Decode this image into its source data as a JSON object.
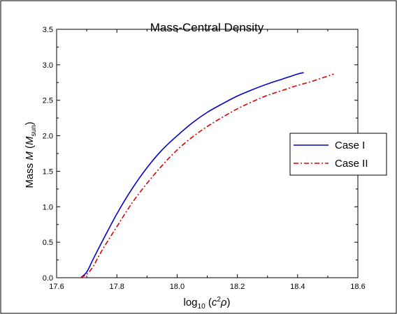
{
  "chart_data": {
    "type": "line",
    "title": "Mass-Central Density",
    "xlabel": {
      "prefix": "log",
      "sub": "10",
      "paren_open": " (",
      "c": "c",
      "sup": "2",
      "rho": "ρ",
      "paren_close": ")"
    },
    "ylabel": {
      "prefix": "Mass ",
      "M": "M",
      "open": " (",
      "M2": "M",
      "sub": "sun",
      "close": ")"
    },
    "xlim": [
      17.6,
      18.6
    ],
    "ylim": [
      0.0,
      3.5
    ],
    "x_ticks": [
      "17.6",
      "17.8",
      "18.0",
      "18.2",
      "18.4",
      "18.6"
    ],
    "y_ticks": [
      "0.0",
      "0.5",
      "1.0",
      "1.5",
      "2.0",
      "2.5",
      "3.0",
      "3.5"
    ],
    "grid": false,
    "legend_position": "right",
    "series": [
      {
        "name": "Case I",
        "color": "#0000cc",
        "style": "solid",
        "x": [
          17.68,
          17.7,
          17.72,
          17.75,
          17.8,
          17.85,
          17.9,
          17.95,
          18.0,
          18.05,
          18.1,
          18.15,
          18.2,
          18.25,
          18.3,
          18.35,
          18.4,
          18.42
        ],
        "y": [
          0.0,
          0.08,
          0.25,
          0.5,
          0.9,
          1.25,
          1.55,
          1.8,
          2.0,
          2.18,
          2.33,
          2.45,
          2.56,
          2.65,
          2.73,
          2.8,
          2.87,
          2.89
        ]
      },
      {
        "name": "Case II",
        "color": "#dd0000",
        "style": "dashdot",
        "x": [
          17.68,
          17.7,
          17.72,
          17.75,
          17.8,
          17.85,
          17.9,
          17.95,
          18.0,
          18.05,
          18.1,
          18.15,
          18.2,
          18.25,
          18.3,
          18.35,
          18.4,
          18.45,
          18.52
        ],
        "y": [
          0.0,
          0.05,
          0.15,
          0.38,
          0.72,
          1.05,
          1.33,
          1.58,
          1.8,
          1.98,
          2.13,
          2.26,
          2.38,
          2.48,
          2.57,
          2.64,
          2.71,
          2.77,
          2.87
        ]
      }
    ]
  }
}
